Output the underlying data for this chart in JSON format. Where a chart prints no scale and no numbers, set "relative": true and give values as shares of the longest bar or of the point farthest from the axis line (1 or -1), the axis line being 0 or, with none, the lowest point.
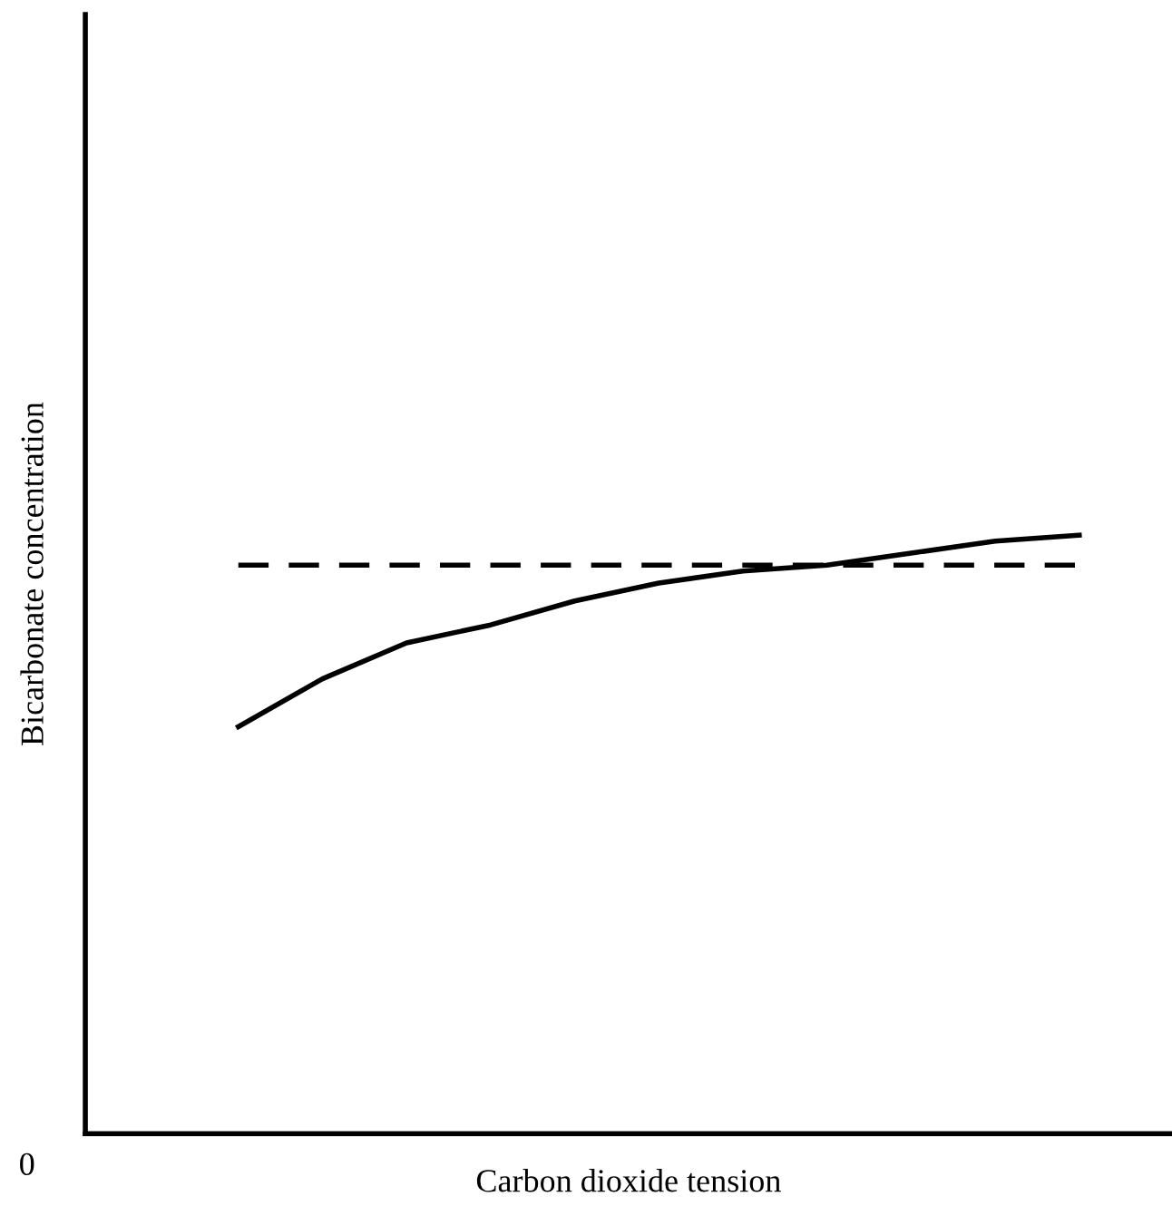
{
  "chart_data": {
    "type": "line",
    "relative": true,
    "xlabel": "Carbon dioxide tension",
    "ylabel": "Bicarbonate concentration",
    "annotations": [
      "0"
    ],
    "categories": [
      null,
      null,
      null,
      null,
      null,
      null,
      null,
      null,
      null,
      null,
      null
    ],
    "marker": "none",
    "series": [
      {
        "color": "#000000",
        "line_style": "solid",
        "values": [
          0.68,
          0.76,
          0.82,
          0.85,
          0.89,
          0.92,
          0.94,
          0.95,
          0.97,
          0.99,
          1
        ]
      },
      {
        "color": "#000000",
        "line_style": "dashed",
        "values": [
          0.95,
          0.95,
          0.95,
          0.95,
          0.95,
          0.95,
          0.95,
          0.95,
          0.95,
          0.95,
          0.95
        ]
      }
    ]
  }
}
